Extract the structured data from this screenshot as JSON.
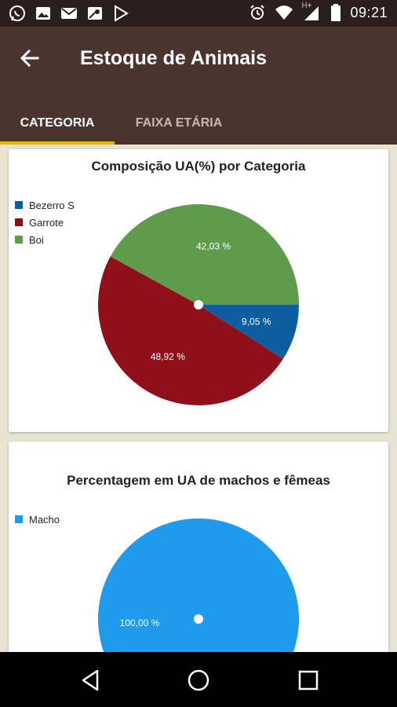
{
  "status_bar": {
    "time": "09:21",
    "network_label": "H+",
    "left_icons": [
      "whatsapp-icon",
      "image-icon",
      "mail-icon",
      "maps-icon",
      "play-store-icon"
    ],
    "right_icons": [
      "alarm-icon",
      "wifi-icon",
      "signal-icon",
      "battery-icon"
    ]
  },
  "app_bar": {
    "title": "Estoque de Animais",
    "back_icon": "arrow-left-icon"
  },
  "tabs": [
    {
      "label": "CATEGORIA",
      "active": true
    },
    {
      "label": "FAIXA ETÁRIA",
      "active": false
    }
  ],
  "colors": {
    "app_bar": "#4a342d",
    "status_bar": "#2b1f1b",
    "tab_indicator": "#e8b400",
    "background": "#e8e4d0"
  },
  "chart_data": [
    {
      "type": "pie",
      "title": "Composição UA(%) por Categoria",
      "legend_position": "top-left",
      "slices": [
        {
          "label": "Bezerro S",
          "value": 9.05,
          "display": "9,05 %",
          "color": "#0d5ea0"
        },
        {
          "label": "Garrote",
          "value": 48.92,
          "display": "48,92 %",
          "color": "#8f0f1a"
        },
        {
          "label": "Boi",
          "value": 42.03,
          "display": "42,03 %",
          "color": "#5e9c4c"
        }
      ]
    },
    {
      "type": "pie",
      "title": "Percentagem em UA de machos e fêmeas",
      "legend_position": "top-left",
      "slices": [
        {
          "label": "Macho",
          "value": 100.0,
          "display": "100,00 %",
          "color": "#1e9bed"
        }
      ]
    }
  ],
  "nav_bar": {
    "icons": [
      "back-triangle-icon",
      "home-circle-icon",
      "recents-square-icon"
    ]
  }
}
